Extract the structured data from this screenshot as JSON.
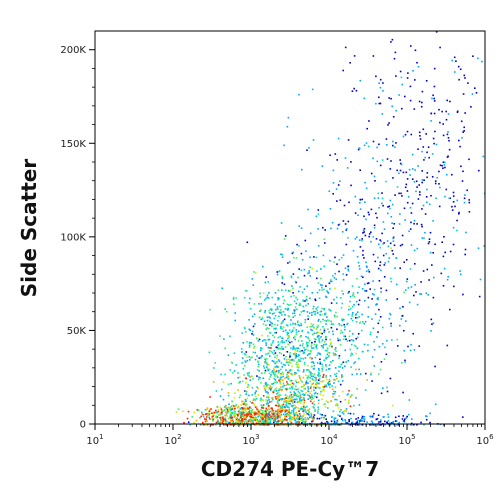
{
  "chart_data": {
    "type": "scatter",
    "subtype": "flow-cytometry-density-dot-plot",
    "title": "",
    "xlabel": "CD274 PE-Cy™7",
    "ylabel": "Side Scatter",
    "x_scale": "log",
    "xlim": [
      10,
      1000000
    ],
    "ylim": [
      0,
      210000
    ],
    "x_ticks": [
      {
        "value": 10,
        "base": "10",
        "exp": "1"
      },
      {
        "value": 100,
        "base": "10",
        "exp": "2"
      },
      {
        "value": 1000,
        "base": "10",
        "exp": "3"
      },
      {
        "value": 10000,
        "base": "10",
        "exp": "4"
      },
      {
        "value": 100000,
        "base": "10",
        "exp": "5"
      },
      {
        "value": 1000000,
        "base": "10",
        "exp": "6"
      }
    ],
    "y_ticks": [
      {
        "value": 0,
        "label": "0"
      },
      {
        "value": 50000,
        "label": "50K"
      },
      {
        "value": 100000,
        "label": "100K"
      },
      {
        "value": 150000,
        "label": "150K"
      },
      {
        "value": 200000,
        "label": "200K"
      }
    ],
    "grid": false,
    "legend": "none",
    "color_scale": [
      "#0000cc",
      "#00aaff",
      "#00ddcc",
      "#44ee66",
      "#ccee00",
      "#ffaa00",
      "#ff2200"
    ],
    "populations": [
      {
        "x_center": 1000,
        "x_spread_decades": 0.35,
        "y_center": 4000,
        "y_spread": 3500,
        "weight": 0.22,
        "density": 1.0
      },
      {
        "x_center": 3000,
        "x_spread_decades": 0.35,
        "y_center": 15000,
        "y_spread": 10000,
        "weight": 0.18,
        "density": 0.75
      },
      {
        "x_center": 2500,
        "x_spread_decades": 0.3,
        "y_center": 45000,
        "y_spread": 20000,
        "weight": 0.17,
        "density": 0.5
      },
      {
        "x_center": 8000,
        "x_spread_decades": 0.35,
        "y_center": 45000,
        "y_spread": 22000,
        "weight": 0.15,
        "density": 0.5
      },
      {
        "x_center": 30000,
        "x_spread_decades": 0.5,
        "y_center": 90000,
        "y_spread": 40000,
        "weight": 0.12,
        "density": 0.25
      },
      {
        "x_center": 150000,
        "x_spread_decades": 0.4,
        "y_center": 140000,
        "y_spread": 40000,
        "weight": 0.1,
        "density": 0.15
      },
      {
        "x_center": 20000,
        "x_spread_decades": 0.6,
        "y_center": 2000,
        "y_spread": 2000,
        "weight": 0.06,
        "density": 0.2
      }
    ]
  }
}
